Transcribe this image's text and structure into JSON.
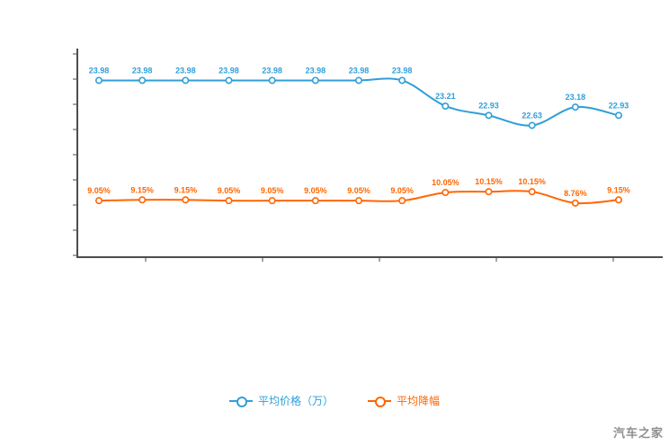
{
  "chart": {
    "watermark": "汽车之家"
  },
  "legend": [
    {
      "label": "平均价格（万）",
      "color": "#2f9fd8"
    },
    {
      "label": "平均降幅",
      "color": "#ff6600"
    }
  ],
  "chart_data": {
    "type": "line",
    "title": "",
    "xlabel": "",
    "ylabel": "",
    "grid": false,
    "legend_position": "bottom",
    "x": [
      1,
      2,
      3,
      4,
      5,
      6,
      7,
      8,
      9,
      10,
      11,
      12,
      13
    ],
    "x_tick_labels": [],
    "series": [
      {
        "name": "平均价格（万）",
        "color": "#2f9fd8",
        "unit": "万",
        "values": [
          23.98,
          23.98,
          23.98,
          23.98,
          23.98,
          23.98,
          23.98,
          23.98,
          23.21,
          22.93,
          22.63,
          23.18,
          22.93
        ],
        "labels": [
          "23.98",
          "23.98",
          "23.98",
          "23.98",
          "23.98",
          "23.98",
          "23.98",
          "23.98",
          "23.21",
          "22.93",
          "22.63",
          "23.18",
          "22.93"
        ]
      },
      {
        "name": "平均降幅",
        "color": "#ff6600",
        "unit": "%",
        "values": [
          9.05,
          9.15,
          9.15,
          9.05,
          9.05,
          9.05,
          9.05,
          9.05,
          10.05,
          10.15,
          10.15,
          8.76,
          9.15
        ],
        "labels": [
          "9.05%",
          "9.15%",
          "9.15%",
          "9.05%",
          "9.05%",
          "9.05%",
          "9.05%",
          "9.05%",
          "10.05%",
          "10.15%",
          "10.15%",
          "8.76%",
          "9.15%"
        ]
      }
    ]
  }
}
